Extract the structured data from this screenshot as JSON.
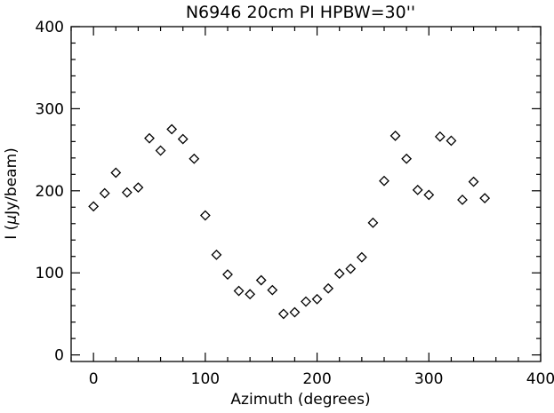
{
  "chart_data": {
    "type": "scatter",
    "title": "N6946 20cm PI HPBW=30''",
    "xlabel": "Azimuth (degrees)",
    "ylabel_prefix": "I (",
    "ylabel_mu": "μ",
    "ylabel_suffix": "Jy/beam)",
    "xlim": [
      -20,
      400
    ],
    "ylim": [
      -8,
      400
    ],
    "x_ticks": [
      0,
      100,
      200,
      300,
      400
    ],
    "y_ticks": [
      0,
      100,
      200,
      300,
      400
    ],
    "x_tick_labels": [
      "0",
      "100",
      "200",
      "300",
      "400"
    ],
    "y_tick_labels": [
      "0",
      "100",
      "200",
      "300",
      "400"
    ],
    "x_minor_step": 20,
    "y_minor_step": 20,
    "marker": "diamond",
    "grid": false,
    "series": [
      {
        "x": [
          0,
          10,
          20,
          30,
          40,
          50,
          60,
          70,
          80,
          90,
          100,
          110,
          120,
          130,
          140,
          150,
          160,
          170,
          180,
          190,
          200,
          210,
          220,
          230,
          240,
          250,
          260,
          270,
          280,
          290,
          300,
          310,
          320,
          330,
          340,
          350
        ],
        "y": [
          181,
          197,
          222,
          198,
          204,
          264,
          249,
          275,
          263,
          239,
          170,
          122,
          98,
          78,
          74,
          91,
          79,
          50,
          52,
          65,
          68,
          81,
          99,
          105,
          119,
          161,
          212,
          267,
          239,
          201,
          195,
          266,
          261,
          189,
          211,
          191
        ]
      }
    ]
  }
}
